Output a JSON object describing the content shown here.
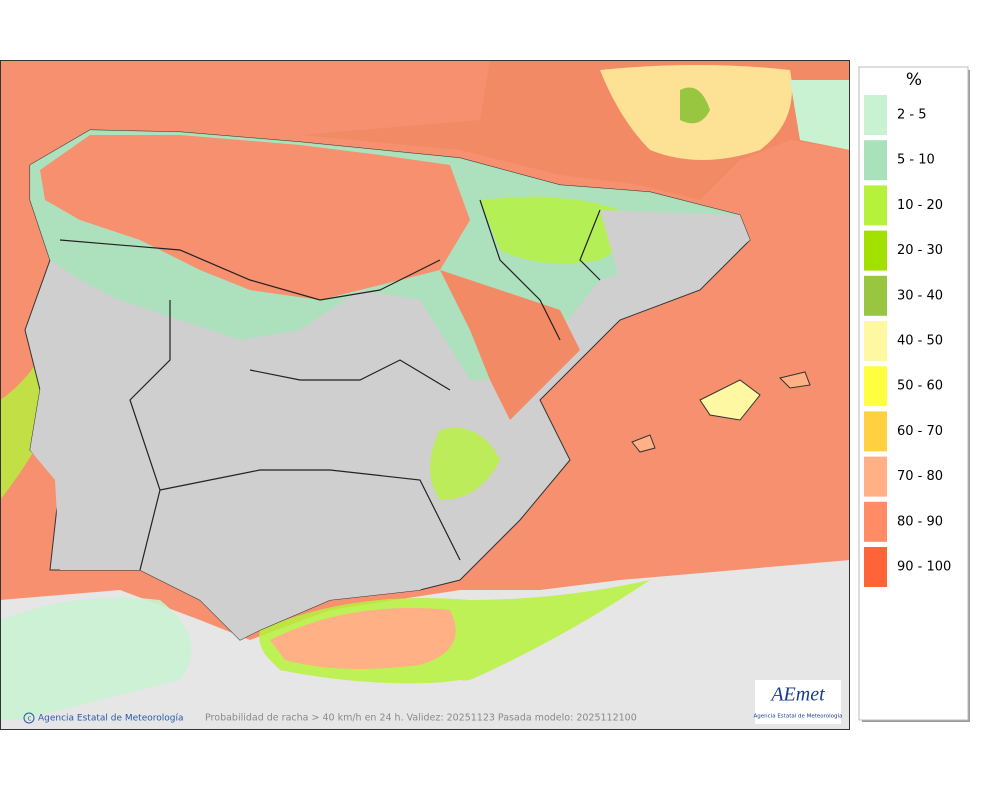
{
  "map": {
    "footer": "Probabilidad de racha > 40 km/h en 24 h. Validez: 20251123 Pasada modelo: 2025112100",
    "credit": "Agencia Estatal de Meteorología",
    "logo": {
      "name": "AEmet",
      "subtitle": "Agencia Estatal de Meteorología"
    }
  },
  "legend": {
    "title": "%",
    "items": [
      {
        "label": "2 - 5",
        "color": "#c9f2d2"
      },
      {
        "label": "5 - 10",
        "color": "#a9e2ba"
      },
      {
        "label": "10 - 20",
        "color": "#b6f23c"
      },
      {
        "label": "20 - 30",
        "color": "#a2e000"
      },
      {
        "label": "30 - 40",
        "color": "#98c640"
      },
      {
        "label": "40 - 50",
        "color": "#fff8a2"
      },
      {
        "label": "50 - 60",
        "color": "#ffff40"
      },
      {
        "label": "60 - 70",
        "color": "#ffd040"
      },
      {
        "label": "70 - 80",
        "color": "#ffb084"
      },
      {
        "label": "80 - 90",
        "color": "#ff8c64"
      },
      {
        "label": "90 - 100",
        "color": "#ff6438"
      }
    ]
  }
}
